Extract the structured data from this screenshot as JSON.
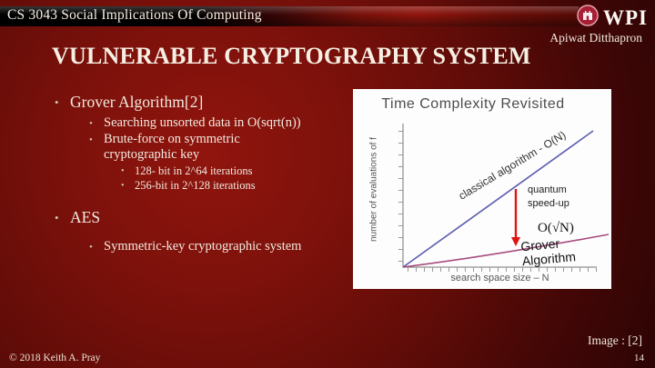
{
  "header": {
    "course_title": "CS 3043 Social Implications Of Computing",
    "logo_text": "WPI",
    "author": "Apiwat Ditthapron"
  },
  "slide": {
    "title": "VULNERABLE CRYPTOGRAPHY SYSTEM",
    "bullets": [
      {
        "level": 1,
        "text": "Grover Algorithm[2]"
      },
      {
        "level": 2,
        "text": "Searching unsorted data in O(sqrt(n))"
      },
      {
        "level": 2,
        "text": "Brute-force on symmetric cryptographic key"
      },
      {
        "level": 3,
        "text": "128- bit in 2^64 iterations"
      },
      {
        "level": 3,
        "text": "256-bit in 2^128 iterations"
      },
      {
        "level": 1,
        "text": "AES"
      },
      {
        "level": 2,
        "text": "Symmetric-key cryptographic system"
      }
    ]
  },
  "chart_data": {
    "type": "line",
    "title": "Time Complexity Revisited",
    "xlabel": "search space size – N",
    "ylabel": "number of evaluations of f",
    "grid": false,
    "axes_numeric_labels": false,
    "series": [
      {
        "name": "classical algorithm - O(N)",
        "shape": "linear",
        "color": "#5b5bb0"
      },
      {
        "name": "Grover Algorithm - O(√N)",
        "shape": "sqrt",
        "color": "#a64a7d"
      }
    ],
    "labels": {
      "classical": "classical algorithm - O(N)",
      "quantum_line1": "quantum",
      "quantum_line2": "speed-up",
      "grover_complexity": "O(√N)",
      "grover": "Grover Algorithm"
    },
    "arrow_color": "#e11212"
  },
  "footer": {
    "image_credit": "Image : [2]",
    "copyright": "© 2018 Keith A. Pray",
    "page_number": "14"
  }
}
